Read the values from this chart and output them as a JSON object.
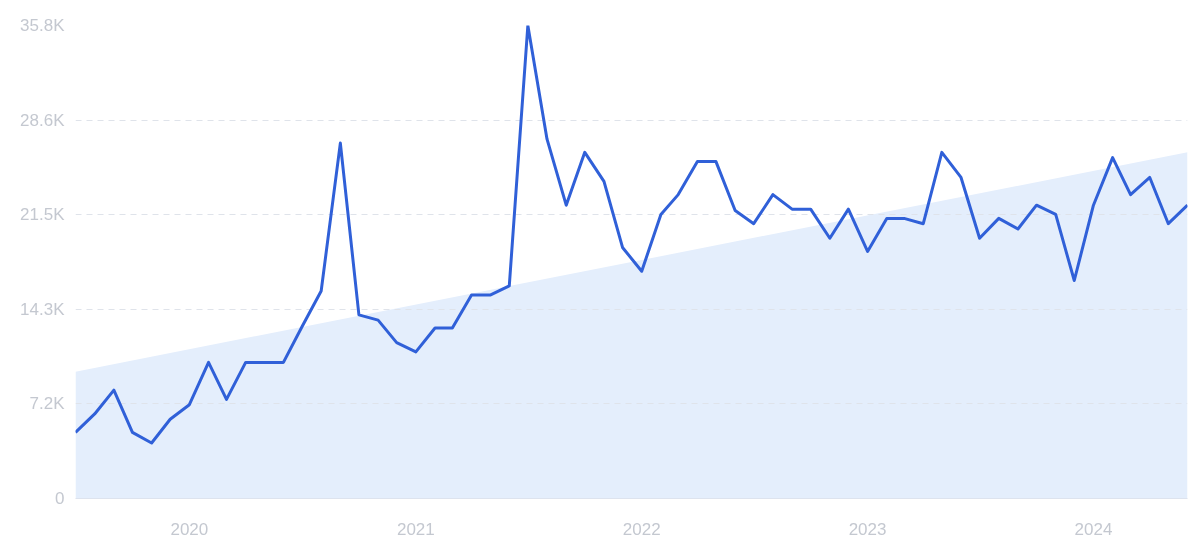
{
  "chart_data": {
    "type": "line",
    "x": [
      "2019-07",
      "2019-08",
      "2019-09",
      "2019-10",
      "2019-11",
      "2019-12",
      "2020-01",
      "2020-02",
      "2020-03",
      "2020-04",
      "2020-05",
      "2020-06",
      "2020-07",
      "2020-08",
      "2020-09",
      "2020-10",
      "2020-11",
      "2020-12",
      "2021-01",
      "2021-02",
      "2021-03",
      "2021-04",
      "2021-05",
      "2021-06",
      "2021-07",
      "2021-08",
      "2021-09",
      "2021-10",
      "2021-11",
      "2021-12",
      "2022-01",
      "2022-02",
      "2022-03",
      "2022-04",
      "2022-05",
      "2022-06",
      "2022-07",
      "2022-08",
      "2022-09",
      "2022-10",
      "2022-11",
      "2022-12",
      "2023-01",
      "2023-02",
      "2023-03",
      "2023-04",
      "2023-05",
      "2023-06",
      "2023-07",
      "2023-08",
      "2023-09",
      "2023-10",
      "2023-11",
      "2023-12",
      "2024-01",
      "2024-02",
      "2024-03",
      "2024-04",
      "2024-05",
      "2024-06"
    ],
    "series": [
      {
        "type": "area",
        "color": "#e4eefc",
        "x": [
          "2019-07",
          "2024-06"
        ],
        "values": [
          9600,
          26200
        ]
      },
      {
        "color": "#3060d8",
        "values": [
          5000,
          6400,
          8200,
          5000,
          4200,
          6000,
          7100,
          10300,
          7500,
          10300,
          10300,
          10300,
          13000,
          15700,
          26900,
          13900,
          13500,
          11800,
          11100,
          12900,
          12900,
          15400,
          15400,
          16100,
          35800,
          27200,
          22200,
          26200,
          24000,
          19000,
          17200,
          21500,
          23000,
          25500,
          25500,
          21800,
          20800,
          23000,
          21900,
          21900,
          19700,
          21900,
          18700,
          21200,
          21200,
          20800,
          26200,
          24300,
          19700,
          21200,
          20400,
          22200,
          21500,
          16500,
          22200,
          25800,
          23000,
          24300,
          20800,
          22200
        ]
      }
    ],
    "xlim": [
      "2019-07",
      "2024-06"
    ],
    "xticks": [
      {
        "value": "2020-01",
        "label": "2020"
      },
      {
        "value": "2021-01",
        "label": "2021"
      },
      {
        "value": "2022-01",
        "label": "2022"
      },
      {
        "value": "2023-01",
        "label": "2023"
      },
      {
        "value": "2024-01",
        "label": "2024"
      }
    ],
    "ylim": [
      0,
      35800
    ],
    "yticks": [
      0,
      {
        "value": 7160,
        "label": "7.2K"
      },
      {
        "value": 14320,
        "label": "14.3K"
      },
      {
        "value": 21480,
        "label": "21.5K"
      },
      {
        "value": 28640,
        "label": "28.6K"
      },
      {
        "value": 35800,
        "label": "35.8K"
      }
    ],
    "grid": "y"
  }
}
